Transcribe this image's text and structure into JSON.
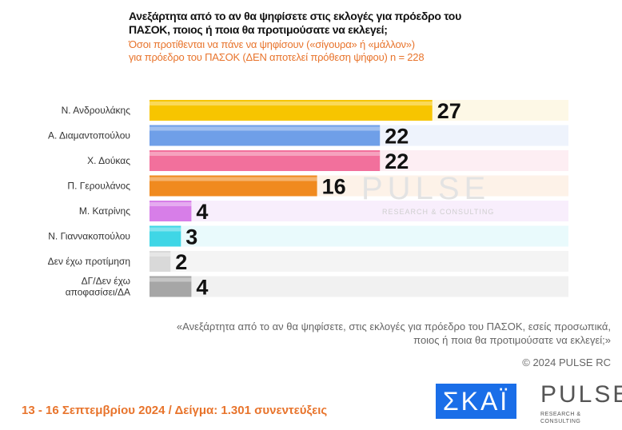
{
  "chart_data": {
    "type": "bar",
    "orientation": "horizontal",
    "title": "Ανεξάρτητα από το αν θα ψηφίσετε στις εκλογές για πρόεδρο του ΠΑΣΟΚ, ποιος ή ποια θα προτιμούσατε να εκλεγεί;",
    "subtitle_lines": [
      "Όσοι προτίθενται να πάνε να ψηφίσουν («σίγουρα» ή «μάλλον»)",
      "για πρόεδρο του ΠΑΣΟΚ   (ΔΕΝ αποτελεί πρόθεση ψήφου)    n = 228"
    ],
    "categories": [
      "Ν. Ανδρουλάκης",
      "Α. Διαμαντοπούλου",
      "Χ. Δούκας",
      "Π. Γερουλάνος",
      "Μ. Κατρίνης",
      "Ν. Γιαννακοπούλου",
      "Δεν έχω προτίμηση",
      "ΔΓ/Δεν έχω αποφασίσει/ΔΑ"
    ],
    "values": [
      27,
      22,
      22,
      16,
      4,
      3,
      2,
      4
    ],
    "colors": [
      "#f7c500",
      "#6f9fe8",
      "#f2709c",
      "#f08a1f",
      "#d77ee8",
      "#3fd6e6",
      "#d9d9d9",
      "#a6a6a6"
    ],
    "track_colors": [
      "#fdf8e6",
      "#eef3fc",
      "#fdeef3",
      "#fdf2e8",
      "#f8eefc",
      "#e9fafc",
      "#f4f4f4",
      "#f1f1f1"
    ],
    "xlim": [
      0,
      40
    ],
    "grid": false
  },
  "watermark": {
    "main": "PULSE",
    "sub": "RESEARCH & CONSULTING"
  },
  "question": [
    "«Ανεξάρτητα από το αν θα ψηφίσετε, στις εκλογές για πρόεδρο του ΠΑΣΟΚ, εσείς προσωπικά,",
    "ποιος ή ποια θα προτιμούσατε να εκλεγεί;»"
  ],
  "copyright": "© 2024 PULSE RC",
  "footer": "13 - 16 Σεπτεμβρίου 2024  /  Δείγμα:  1.301 συνεντεύξεις",
  "logos": {
    "skai": "ΣΚΑΪ",
    "pulse": "PULSE",
    "pulse_sub": "RESEARCH & CONSULTING"
  }
}
